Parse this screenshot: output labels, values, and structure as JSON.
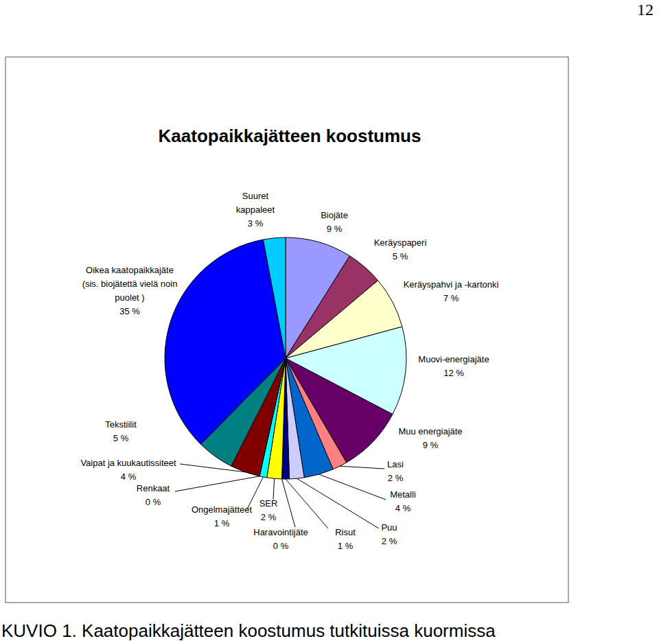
{
  "page_number": "12",
  "caption": "KUVIO 1. Kaatopaikkajätteen koostumus tutkituissa kuormissa",
  "chart_data": {
    "type": "pie",
    "title": "Kaatopaikkajätteen koostumus",
    "categories": [
      "Biojäte",
      "Keräyspaperi",
      "Keräyspahvi ja -kartonki",
      "Muovi-energiajäte",
      "Muu energiajäte",
      "Lasi",
      "Metalli",
      "Puu",
      "Risut",
      "Haravointijäte",
      "SER",
      "Ongelmajätteet",
      "Renkaat",
      "Vaipat ja kuukautissiteet",
      "Tekstiilit",
      "Oikea kaatopaikkajäte\n(sis. biojätettä vielä noin\npuolet )",
      "Suuret\nkappaleet"
    ],
    "values": [
      9,
      5,
      7,
      12,
      9,
      2,
      4,
      2,
      1,
      0,
      2,
      1,
      0,
      4,
      5,
      35,
      3
    ],
    "value_labels": [
      "9 %",
      "5 %",
      "7 %",
      "12 %",
      "9 %",
      "2 %",
      "4 %",
      "2 %",
      "1 %",
      "0 %",
      "2 %",
      "1 %",
      "0 %",
      "4 %",
      "5 %",
      "35 %",
      "3 %"
    ],
    "colors": [
      "#9999ff",
      "#993366",
      "#ffffcc",
      "#ccffff",
      "#660066",
      "#ff8080",
      "#0066cc",
      "#ccccff",
      "#000080",
      "#ff00ff",
      "#ffff00",
      "#00ffff",
      "#800080",
      "#800000",
      "#008080",
      "#0000ff",
      "#00ccff"
    ],
    "data_labels": true
  }
}
